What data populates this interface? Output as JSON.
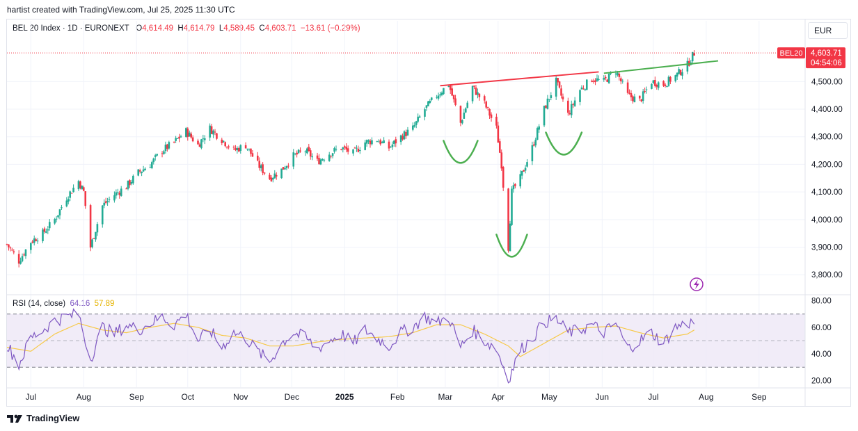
{
  "header": "hartist created with TradingView.com, Jul 25, 2025 11:30 UTC",
  "legend": {
    "symbol": "BEL 20 Index · 1D · EURONEXT",
    "o_label": "O",
    "o_value": "4,614.49",
    "h_label": "H",
    "h_value": "4,614.79",
    "l_label": "L",
    "l_value": "4,589.45",
    "c_label": "C",
    "c_value": "4,603.71",
    "change": "−13.61 (−0.29%)"
  },
  "currency": "EUR",
  "price_tag": {
    "symbol": "BEL20",
    "price": "4,603.71",
    "countdown": "04:54:06"
  },
  "rsi_legend": {
    "title": "RSI (14, close)",
    "rsi": "64.16",
    "ma": "57.89"
  },
  "footer": {
    "brand": "TradingView"
  },
  "colors": {
    "up": "#22ab94",
    "down": "#f23645",
    "rsi": "#7e57c2",
    "rsi_ma": "#f7c948",
    "resistance": "#f23645",
    "neckline": "#4caf50"
  },
  "chart_data": [
    {
      "type": "candlestick",
      "title": "BEL 20 Index · 1D · EURONEXT",
      "x_range": [
        "2024-06-17",
        "2025-09-28"
      ],
      "ylim": [
        3730,
        4720
      ],
      "y_ticks": [
        3800,
        3900,
        4000,
        4100,
        4200,
        4300,
        4400,
        4500
      ],
      "y_tick_labels": [
        "3,800.00",
        "3,900.00",
        "4,000.00",
        "4,100.00",
        "4,200.00",
        "4,300.00",
        "4,400.00",
        "4,500.00"
      ],
      "x_tick_labels": [
        {
          "date": "2024-07-01",
          "label": "Jul"
        },
        {
          "date": "2024-08-01",
          "label": "Aug"
        },
        {
          "date": "2024-09-01",
          "label": "Sep"
        },
        {
          "date": "2024-10-01",
          "label": "Oct"
        },
        {
          "date": "2024-11-01",
          "label": "Nov"
        },
        {
          "date": "2024-12-01",
          "label": "Dec"
        },
        {
          "date": "2025-01-01",
          "label": "2025"
        },
        {
          "date": "2025-02-01",
          "label": "Feb"
        },
        {
          "date": "2025-03-01",
          "label": "Mar"
        },
        {
          "date": "2025-04-01",
          "label": "Apr"
        },
        {
          "date": "2025-05-01",
          "label": "May"
        },
        {
          "date": "2025-06-01",
          "label": "Jun"
        },
        {
          "date": "2025-07-01",
          "label": "Jul"
        },
        {
          "date": "2025-08-01",
          "label": "Aug"
        },
        {
          "date": "2025-09-01",
          "label": "Sep"
        }
      ],
      "last_price": 4603.71,
      "grid": true,
      "close_path": [
        [
          "2024-06-17",
          3910
        ],
        [
          "2024-06-24",
          3850
        ],
        [
          "2024-07-01",
          3920
        ],
        [
          "2024-07-08",
          3950
        ],
        [
          "2024-07-15",
          4000
        ],
        [
          "2024-07-22",
          4080
        ],
        [
          "2024-07-29",
          4140
        ],
        [
          "2024-08-01",
          4100
        ],
        [
          "2024-08-05",
          3900
        ],
        [
          "2024-08-12",
          4050
        ],
        [
          "2024-08-19",
          4090
        ],
        [
          "2024-08-26",
          4120
        ],
        [
          "2024-09-02",
          4170
        ],
        [
          "2024-09-09",
          4200
        ],
        [
          "2024-09-16",
          4250
        ],
        [
          "2024-09-23",
          4280
        ],
        [
          "2024-09-30",
          4320
        ],
        [
          "2024-10-07",
          4270
        ],
        [
          "2024-10-14",
          4330
        ],
        [
          "2024-10-21",
          4290
        ],
        [
          "2024-10-28",
          4250
        ],
        [
          "2024-11-04",
          4270
        ],
        [
          "2024-11-11",
          4200
        ],
        [
          "2024-11-18",
          4150
        ],
        [
          "2024-11-25",
          4180
        ],
        [
          "2024-12-02",
          4230
        ],
        [
          "2024-12-09",
          4250
        ],
        [
          "2024-12-16",
          4210
        ],
        [
          "2024-12-23",
          4240
        ],
        [
          "2024-12-30",
          4260
        ],
        [
          "2025-01-06",
          4240
        ],
        [
          "2025-01-13",
          4280
        ],
        [
          "2025-01-20",
          4290
        ],
        [
          "2025-01-27",
          4260
        ],
        [
          "2025-02-03",
          4300
        ],
        [
          "2025-02-10",
          4330
        ],
        [
          "2025-02-17",
          4400
        ],
        [
          "2025-02-24",
          4450
        ],
        [
          "2025-03-03",
          4490
        ],
        [
          "2025-03-10",
          4350
        ],
        [
          "2025-03-17",
          4480
        ],
        [
          "2025-03-24",
          4420
        ],
        [
          "2025-03-31",
          4330
        ],
        [
          "2025-04-03",
          4200
        ],
        [
          "2025-04-07",
          3900
        ],
        [
          "2025-04-09",
          4100
        ],
        [
          "2025-04-14",
          4150
        ],
        [
          "2025-04-21",
          4260
        ],
        [
          "2025-04-28",
          4400
        ],
        [
          "2025-05-05",
          4500
        ],
        [
          "2025-05-12",
          4380
        ],
        [
          "2025-05-19",
          4470
        ],
        [
          "2025-05-26",
          4510
        ],
        [
          "2025-06-02",
          4500
        ],
        [
          "2025-06-09",
          4540
        ],
        [
          "2025-06-16",
          4450
        ],
        [
          "2025-06-23",
          4430
        ],
        [
          "2025-06-30",
          4500
        ],
        [
          "2025-07-07",
          4490
        ],
        [
          "2025-07-14",
          4520
        ],
        [
          "2025-07-21",
          4560
        ],
        [
          "2025-07-25",
          4604
        ]
      ],
      "annotations": {
        "resistance_line": [
          [
            "2025-02-26",
            4485
          ],
          [
            "2025-05-30",
            4535
          ]
        ],
        "neckline": [
          [
            "2025-06-02",
            4530
          ],
          [
            "2025-08-08",
            4575
          ]
        ],
        "left_shoulder_arc": {
          "from": "2025-02-28",
          "to": "2025-03-20",
          "low": 4200
        },
        "head_arc": {
          "from": "2025-03-31",
          "to": "2025-04-18",
          "low": 3860
        },
        "right_shoulder_arc": {
          "from": "2025-04-29",
          "to": "2025-05-20",
          "low": 4230
        }
      }
    },
    {
      "type": "line",
      "title": "RSI (14, close)",
      "ylim": [
        15,
        84
      ],
      "y_ticks": [
        20,
        40,
        60,
        80
      ],
      "y_tick_labels": [
        "20.00",
        "40.00",
        "60.00",
        "80.00"
      ],
      "band": [
        30,
        70
      ],
      "midline": 50,
      "series": [
        {
          "name": "RSI",
          "points": [
            [
              "2024-06-17",
              47
            ],
            [
              "2024-06-24",
              32
            ],
            [
              "2024-07-01",
              52
            ],
            [
              "2024-07-08",
              58
            ],
            [
              "2024-07-15",
              65
            ],
            [
              "2024-07-22",
              68
            ],
            [
              "2024-07-29",
              70
            ],
            [
              "2024-08-05",
              36
            ],
            [
              "2024-08-12",
              60
            ],
            [
              "2024-08-19",
              55
            ],
            [
              "2024-08-26",
              62
            ],
            [
              "2024-09-02",
              58
            ],
            [
              "2024-09-09",
              63
            ],
            [
              "2024-09-16",
              68
            ],
            [
              "2024-09-23",
              62
            ],
            [
              "2024-09-30",
              70
            ],
            [
              "2024-10-07",
              50
            ],
            [
              "2024-10-14",
              58
            ],
            [
              "2024-10-21",
              45
            ],
            [
              "2024-10-28",
              56
            ],
            [
              "2024-11-04",
              52
            ],
            [
              "2024-11-11",
              42
            ],
            [
              "2024-11-18",
              34
            ],
            [
              "2024-11-25",
              48
            ],
            [
              "2024-12-02",
              56
            ],
            [
              "2024-12-09",
              52
            ],
            [
              "2024-12-16",
              44
            ],
            [
              "2024-12-23",
              50
            ],
            [
              "2024-12-30",
              55
            ],
            [
              "2025-01-06",
              48
            ],
            [
              "2025-01-13",
              58
            ],
            [
              "2025-01-20",
              52
            ],
            [
              "2025-01-27",
              46
            ],
            [
              "2025-02-03",
              56
            ],
            [
              "2025-02-10",
              60
            ],
            [
              "2025-02-17",
              68
            ],
            [
              "2025-02-24",
              63
            ],
            [
              "2025-03-03",
              68
            ],
            [
              "2025-03-10",
              45
            ],
            [
              "2025-03-17",
              58
            ],
            [
              "2025-03-24",
              50
            ],
            [
              "2025-03-31",
              44
            ],
            [
              "2025-04-07",
              21
            ],
            [
              "2025-04-14",
              43
            ],
            [
              "2025-04-21",
              52
            ],
            [
              "2025-04-28",
              64
            ],
            [
              "2025-05-05",
              66
            ],
            [
              "2025-05-12",
              56
            ],
            [
              "2025-05-19",
              58
            ],
            [
              "2025-05-26",
              62
            ],
            [
              "2025-06-02",
              56
            ],
            [
              "2025-06-09",
              63
            ],
            [
              "2025-06-16",
              44
            ],
            [
              "2025-06-23",
              50
            ],
            [
              "2025-06-30",
              56
            ],
            [
              "2025-07-07",
              48
            ],
            [
              "2025-07-14",
              60
            ],
            [
              "2025-07-21",
              63
            ],
            [
              "2025-07-25",
              64
            ]
          ]
        },
        {
          "name": "RSI-based MA",
          "points": [
            [
              "2024-06-17",
              45
            ],
            [
              "2024-07-01",
              42
            ],
            [
              "2024-07-15",
              55
            ],
            [
              "2024-07-29",
              63
            ],
            [
              "2024-08-12",
              58
            ],
            [
              "2024-08-26",
              56
            ],
            [
              "2024-09-09",
              60
            ],
            [
              "2024-09-23",
              63
            ],
            [
              "2024-10-07",
              60
            ],
            [
              "2024-10-21",
              54
            ],
            [
              "2024-11-04",
              52
            ],
            [
              "2024-11-18",
              46
            ],
            [
              "2024-12-02",
              46
            ],
            [
              "2024-12-16",
              49
            ],
            [
              "2024-12-30",
              51
            ],
            [
              "2025-01-13",
              52
            ],
            [
              "2025-01-27",
              53
            ],
            [
              "2025-02-10",
              56
            ],
            [
              "2025-02-24",
              62
            ],
            [
              "2025-03-10",
              62
            ],
            [
              "2025-03-24",
              55
            ],
            [
              "2025-04-07",
              46
            ],
            [
              "2025-04-14",
              38
            ],
            [
              "2025-04-28",
              48
            ],
            [
              "2025-05-12",
              58
            ],
            [
              "2025-05-26",
              60
            ],
            [
              "2025-06-09",
              61
            ],
            [
              "2025-06-23",
              56
            ],
            [
              "2025-07-07",
              52
            ],
            [
              "2025-07-21",
              55
            ],
            [
              "2025-07-25",
              58
            ]
          ]
        }
      ]
    }
  ]
}
